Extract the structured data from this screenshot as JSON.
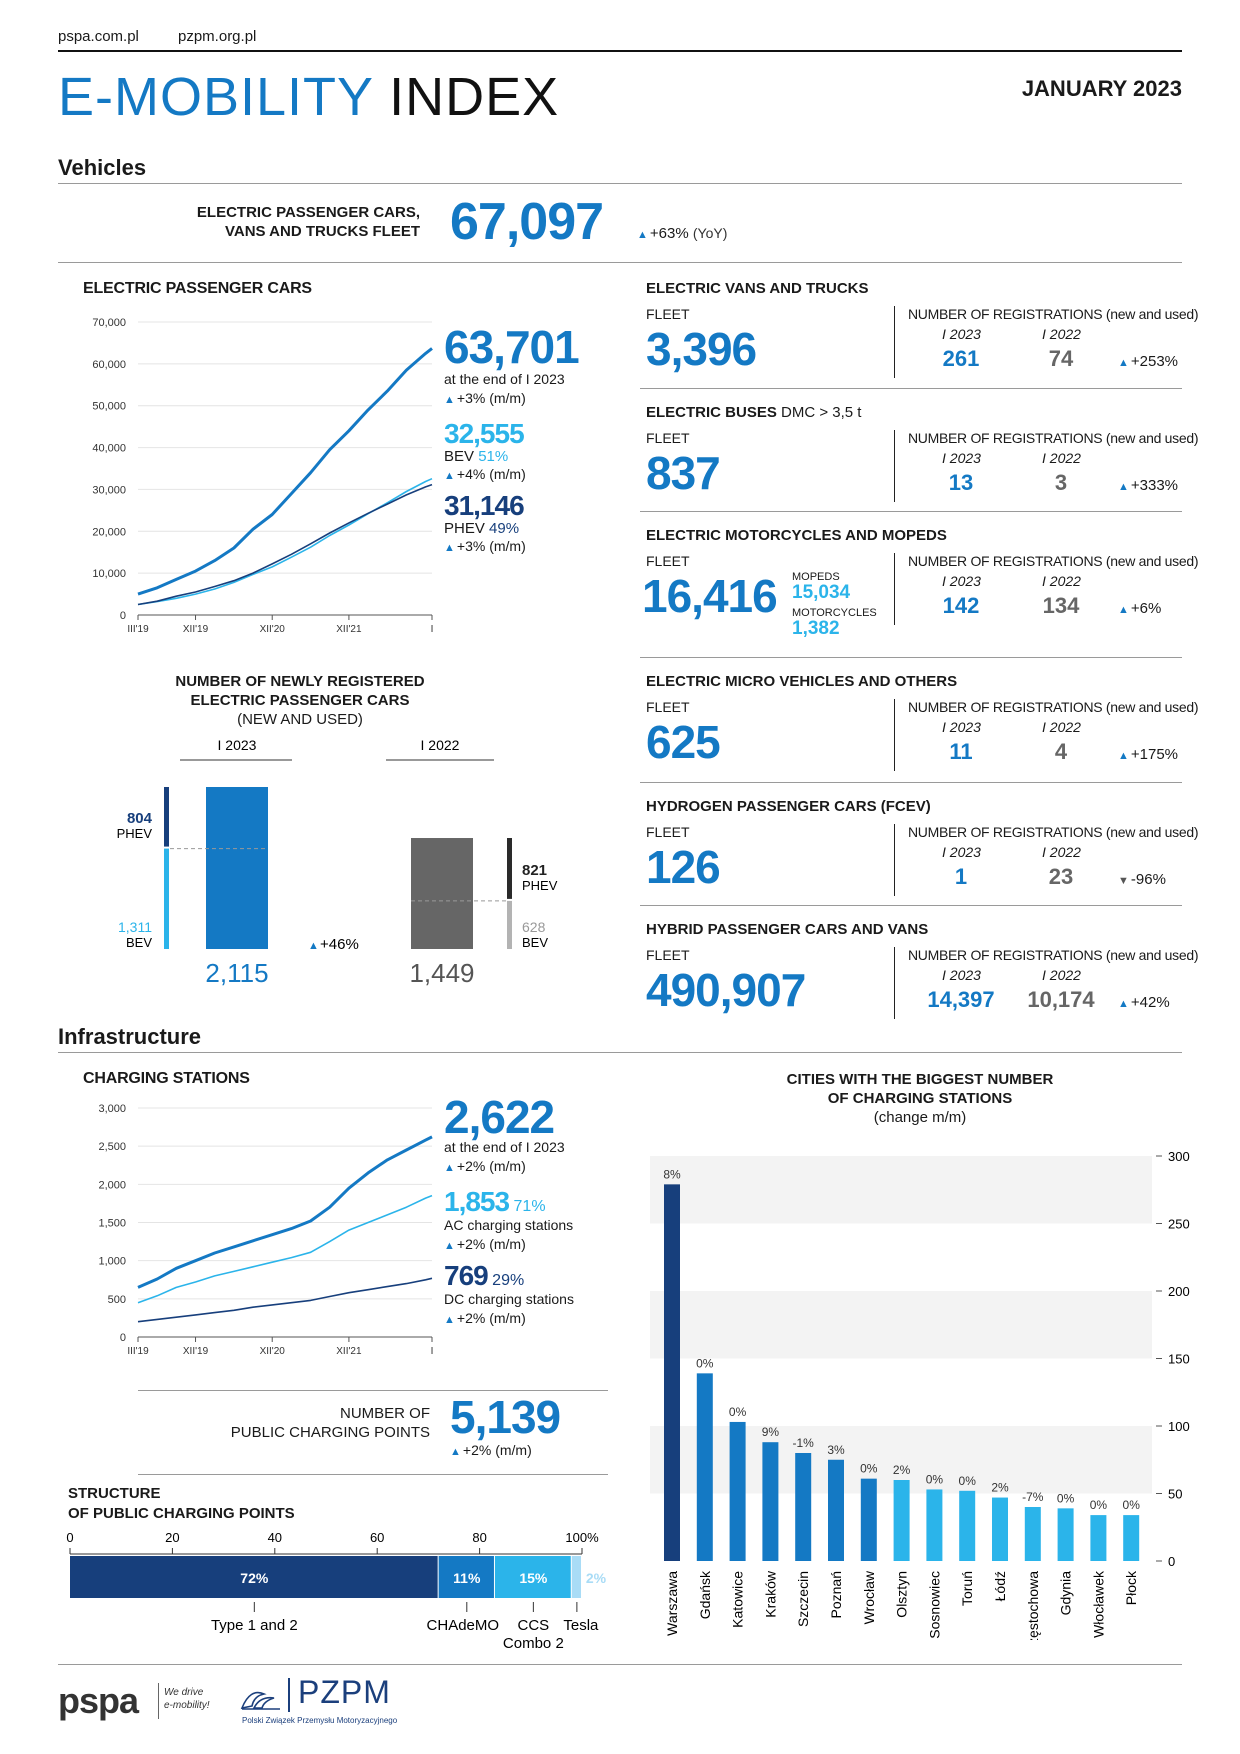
{
  "header": {
    "link1": "pspa.com.pl",
    "link2": "pzpm.org.pl",
    "title_part1": "E-MOBILITY",
    "title_part2": "INDEX",
    "date": "JANUARY 2023"
  },
  "sections": {
    "vehicles": "Vehicles",
    "infrastructure": "Infrastructure"
  },
  "fleet_total": {
    "label_line1": "ELECTRIC PASSENGER CARS,",
    "label_line2": "VANS AND TRUCKS FLEET",
    "value": "67,097",
    "change": "+63%",
    "change_unit": "(YoY)"
  },
  "epc": {
    "title": "ELECTRIC PASSENGER CARS",
    "total": "63,701",
    "total_sub": "at the end of I 2023",
    "total_change": "+3%",
    "mm": "(m/m)",
    "bev_value": "32,555",
    "bev_label": "BEV",
    "bev_pct": "51%",
    "bev_change": "+4%",
    "phev_value": "31,146",
    "phev_label": "PHEV",
    "phev_pct": "49%",
    "phev_change": "+3%"
  },
  "newly": {
    "title_line1": "NUMBER OF NEWLY REGISTERED",
    "title_line2": "ELECTRIC PASSENGER CARS",
    "title_line3": "(NEW AND USED)",
    "period1": "I 2023",
    "period2": "I 2022",
    "phev_2023": "804",
    "bev_2023": "1,311",
    "total_2023": "2,115",
    "phev_2022": "821",
    "bev_2022": "628",
    "total_2022": "1,449",
    "change": "+46%",
    "phev_label": "PHEV",
    "bev_label": "BEV"
  },
  "categories": [
    {
      "title": "ELECTRIC VANS AND TRUCKS",
      "title_suffix": "",
      "fleet_label": "FLEET",
      "fleet": "3,396",
      "reg_label": "NUMBER OF REGISTRATIONS",
      "reg_suffix": "(new and used)",
      "p1": "I 2023",
      "p2": "I 2022",
      "v1": "261",
      "v2": "74",
      "change": "+253%",
      "dir": "up"
    },
    {
      "title": "ELECTRIC BUSES",
      "title_suffix": "DMC > 3,5 t",
      "fleet_label": "FLEET",
      "fleet": "837",
      "reg_label": "NUMBER OF REGISTRATIONS",
      "reg_suffix": "(new and used)",
      "p1": "I 2023",
      "p2": "I 2022",
      "v1": "13",
      "v2": "3",
      "change": "+333%",
      "dir": "up"
    },
    {
      "title": "ELECTRIC MOTORCYCLES AND MOPEDS",
      "title_suffix": "",
      "fleet_label": "FLEET",
      "fleet": "16,416",
      "reg_label": "NUMBER OF REGISTRATIONS",
      "reg_suffix": "(new and used)",
      "p1": "I 2023",
      "p2": "I 2022",
      "v1": "142",
      "v2": "134",
      "change": "+6%",
      "dir": "up"
    },
    {
      "title": "ELECTRIC MICRO VEHICLES AND OTHERS",
      "title_suffix": "",
      "fleet_label": "FLEET",
      "fleet": "625",
      "reg_label": "NUMBER OF REGISTRATIONS",
      "reg_suffix": "(new and used)",
      "p1": "I 2023",
      "p2": "I 2022",
      "v1": "11",
      "v2": "4",
      "change": "+175%",
      "dir": "up"
    },
    {
      "title": "HYDROGEN PASSENGER CARS (FCEV)",
      "title_suffix": "",
      "fleet_label": "FLEET",
      "fleet": "126",
      "reg_label": "NUMBER OF REGISTRATIONS",
      "reg_suffix": "(new and used)",
      "p1": "I 2023",
      "p2": "I 2022",
      "v1": "1",
      "v2": "23",
      "change": "-96%",
      "dir": "down"
    },
    {
      "title": "HYBRID PASSENGER CARS AND VANS",
      "title_suffix": "",
      "fleet_label": "FLEET",
      "fleet": "490,907",
      "reg_label": "NUMBER OF REGISTRATIONS",
      "reg_suffix": "(new and used)",
      "p1": "I 2023",
      "p2": "I 2022",
      "v1": "14,397",
      "v2": "10,174",
      "change": "+42%",
      "dir": "up"
    }
  ],
  "moto": {
    "mopeds_label": "MOPEDS",
    "mopeds": "15,034",
    "moto_label": "MOTORCYCLES",
    "moto": "1,382"
  },
  "charging": {
    "title": "CHARGING STATIONS",
    "total": "2,622",
    "total_sub": "at the end of I 2023",
    "total_change": "+2%",
    "mm": "(m/m)",
    "ac_value": "1,853",
    "ac_pct": "71%",
    "ac_label": "AC charging stations",
    "ac_change": "+2%",
    "dc_value": "769",
    "dc_pct": "29%",
    "dc_label": "DC charging stations",
    "dc_change": "+2%"
  },
  "points": {
    "label_line1": "NUMBER OF",
    "label_line2": "PUBLIC CHARGING POINTS",
    "value": "5,139",
    "change": "+2%",
    "mm": "(m/m)"
  },
  "structure": {
    "title_line1": "STRUCTURE",
    "title_line2": "OF PUBLIC CHARGING POINTS",
    "ticks": [
      "0",
      "20",
      "40",
      "60",
      "80",
      "100%"
    ],
    "segments": [
      {
        "name": "Type 1 and 2",
        "pct": 72,
        "label": "72%",
        "color": "#173f7c"
      },
      {
        "name": "CHAdeMO",
        "pct": 11,
        "label": "11%",
        "color": "#1479c4"
      },
      {
        "name": "CCS Combo 2",
        "pct": 15,
        "label": "15%",
        "color": "#2bb4ea"
      },
      {
        "name": "Tesla",
        "pct": 2,
        "label": "2%",
        "color": "#a9dcf6"
      }
    ],
    "name_type12": "Type 1 and 2",
    "name_chademo": "CHAdeMO",
    "name_ccs1": "CCS",
    "name_ccs2": "Combo 2",
    "name_tesla": "Tesla"
  },
  "cities_title": {
    "line1": "CITIES WITH THE BIGGEST NUMBER",
    "line2": "OF CHARGING STATIONS",
    "line3": "(change m/m)"
  },
  "footer": {
    "pspa": "pspa",
    "tagline1": "We drive",
    "tagline2": "e-mobility!",
    "pzpm": "PZPM",
    "pzpm_sub": "Polski Związek Przemysłu Motoryzacyjnego"
  },
  "chart_data": [
    {
      "type": "line",
      "title": "ELECTRIC PASSENGER CARS",
      "x_ticks": [
        "III'19",
        "XII'19",
        "XII'20",
        "XII'21",
        "I"
      ],
      "ylim": [
        0,
        70000
      ],
      "y_ticks": [
        "0",
        "10,000",
        "20,000",
        "30,000",
        "40,000",
        "50,000",
        "60,000",
        "70,000"
      ],
      "x": [
        0,
        3,
        6,
        9,
        12,
        15,
        18,
        21,
        24,
        27,
        30,
        33,
        36,
        39,
        42,
        45,
        46
      ],
      "series": [
        {
          "values": [
            5000,
            6500,
            8500,
            10500,
            13000,
            16000,
            20500,
            24000,
            29000,
            34000,
            39500,
            44000,
            49000,
            53500,
            58500,
            62500,
            63701
          ],
          "color": "#1479c4"
        },
        {
          "values": [
            2500,
            3200,
            4000,
            5000,
            6200,
            7800,
            9700,
            11500,
            13800,
            16200,
            19000,
            21500,
            24200,
            26800,
            29500,
            31900,
            32555
          ],
          "color": "#2bb4ea"
        },
        {
          "values": [
            2500,
            3300,
            4500,
            5500,
            6800,
            8200,
            10000,
            12200,
            14500,
            17000,
            19600,
            22000,
            24300,
            26500,
            28700,
            30600,
            31146
          ],
          "color": "#173f7c"
        }
      ]
    },
    {
      "type": "bar",
      "title": "NUMBER OF NEWLY REGISTERED ELECTRIC PASSENGER CARS (NEW AND USED)",
      "categories": [
        "I 2023",
        "I 2022"
      ],
      "series": [
        {
          "name": "BEV",
          "values": [
            1311,
            628
          ]
        },
        {
          "name": "PHEV",
          "values": [
            804,
            821
          ]
        }
      ],
      "totals": [
        2115,
        1449
      ]
    },
    {
      "type": "line",
      "title": "CHARGING STATIONS",
      "x_ticks": [
        "III'19",
        "XII'19",
        "XII'20",
        "XII'21",
        "I"
      ],
      "ylim": [
        0,
        3000
      ],
      "y_ticks": [
        "0",
        "500",
        "1,000",
        "1,500",
        "2,000",
        "2,500",
        "3,000"
      ],
      "x": [
        0,
        3,
        6,
        9,
        12,
        15,
        18,
        21,
        24,
        27,
        30,
        33,
        36,
        39,
        42,
        45,
        46
      ],
      "series": [
        {
          "values": [
            650,
            760,
            900,
            1000,
            1100,
            1180,
            1260,
            1340,
            1420,
            1520,
            1700,
            1950,
            2150,
            2320,
            2450,
            2580,
            2622
          ],
          "color": "#1479c4"
        },
        {
          "values": [
            450,
            540,
            650,
            720,
            800,
            860,
            920,
            980,
            1040,
            1110,
            1250,
            1400,
            1500,
            1600,
            1700,
            1820,
            1853
          ],
          "color": "#2bb4ea"
        },
        {
          "values": [
            200,
            230,
            260,
            290,
            320,
            350,
            390,
            420,
            450,
            480,
            530,
            580,
            620,
            660,
            700,
            750,
            769
          ],
          "color": "#173f7c"
        }
      ]
    },
    {
      "type": "bar",
      "title": "CITIES WITH THE BIGGEST NUMBER OF CHARGING STATIONS (change m/m)",
      "categories": [
        "Warszawa",
        "Gdańsk",
        "Katowice",
        "Kraków",
        "Szczecin",
        "Poznań",
        "Wrocław",
        "Olsztyn",
        "Sosnowiec",
        "Toruń",
        "Łódź",
        "Częstochowa",
        "Gdynia",
        "Włocławek",
        "Płock"
      ],
      "values": [
        279,
        139,
        103,
        88,
        80,
        75,
        61,
        60,
        53,
        52,
        47,
        40,
        39,
        34,
        34
      ],
      "changes": [
        "8%",
        "0%",
        "0%",
        "9%",
        "-1%",
        "3%",
        "0%",
        "2%",
        "0%",
        "0%",
        "2%",
        "-7%",
        "0%",
        "0%",
        "0%"
      ],
      "ylim": [
        0,
        300
      ],
      "y_ticks": [
        "0",
        "50",
        "100",
        "150",
        "200",
        "250",
        "300"
      ],
      "colors": [
        "#173f7c",
        "#1479c4",
        "#1479c4",
        "#1479c4",
        "#1479c4",
        "#1479c4",
        "#1479c4",
        "#2bb4ea",
        "#2bb4ea",
        "#2bb4ea",
        "#2bb4ea",
        "#2bb4ea",
        "#2bb4ea",
        "#2bb4ea",
        "#2bb4ea"
      ]
    }
  ]
}
